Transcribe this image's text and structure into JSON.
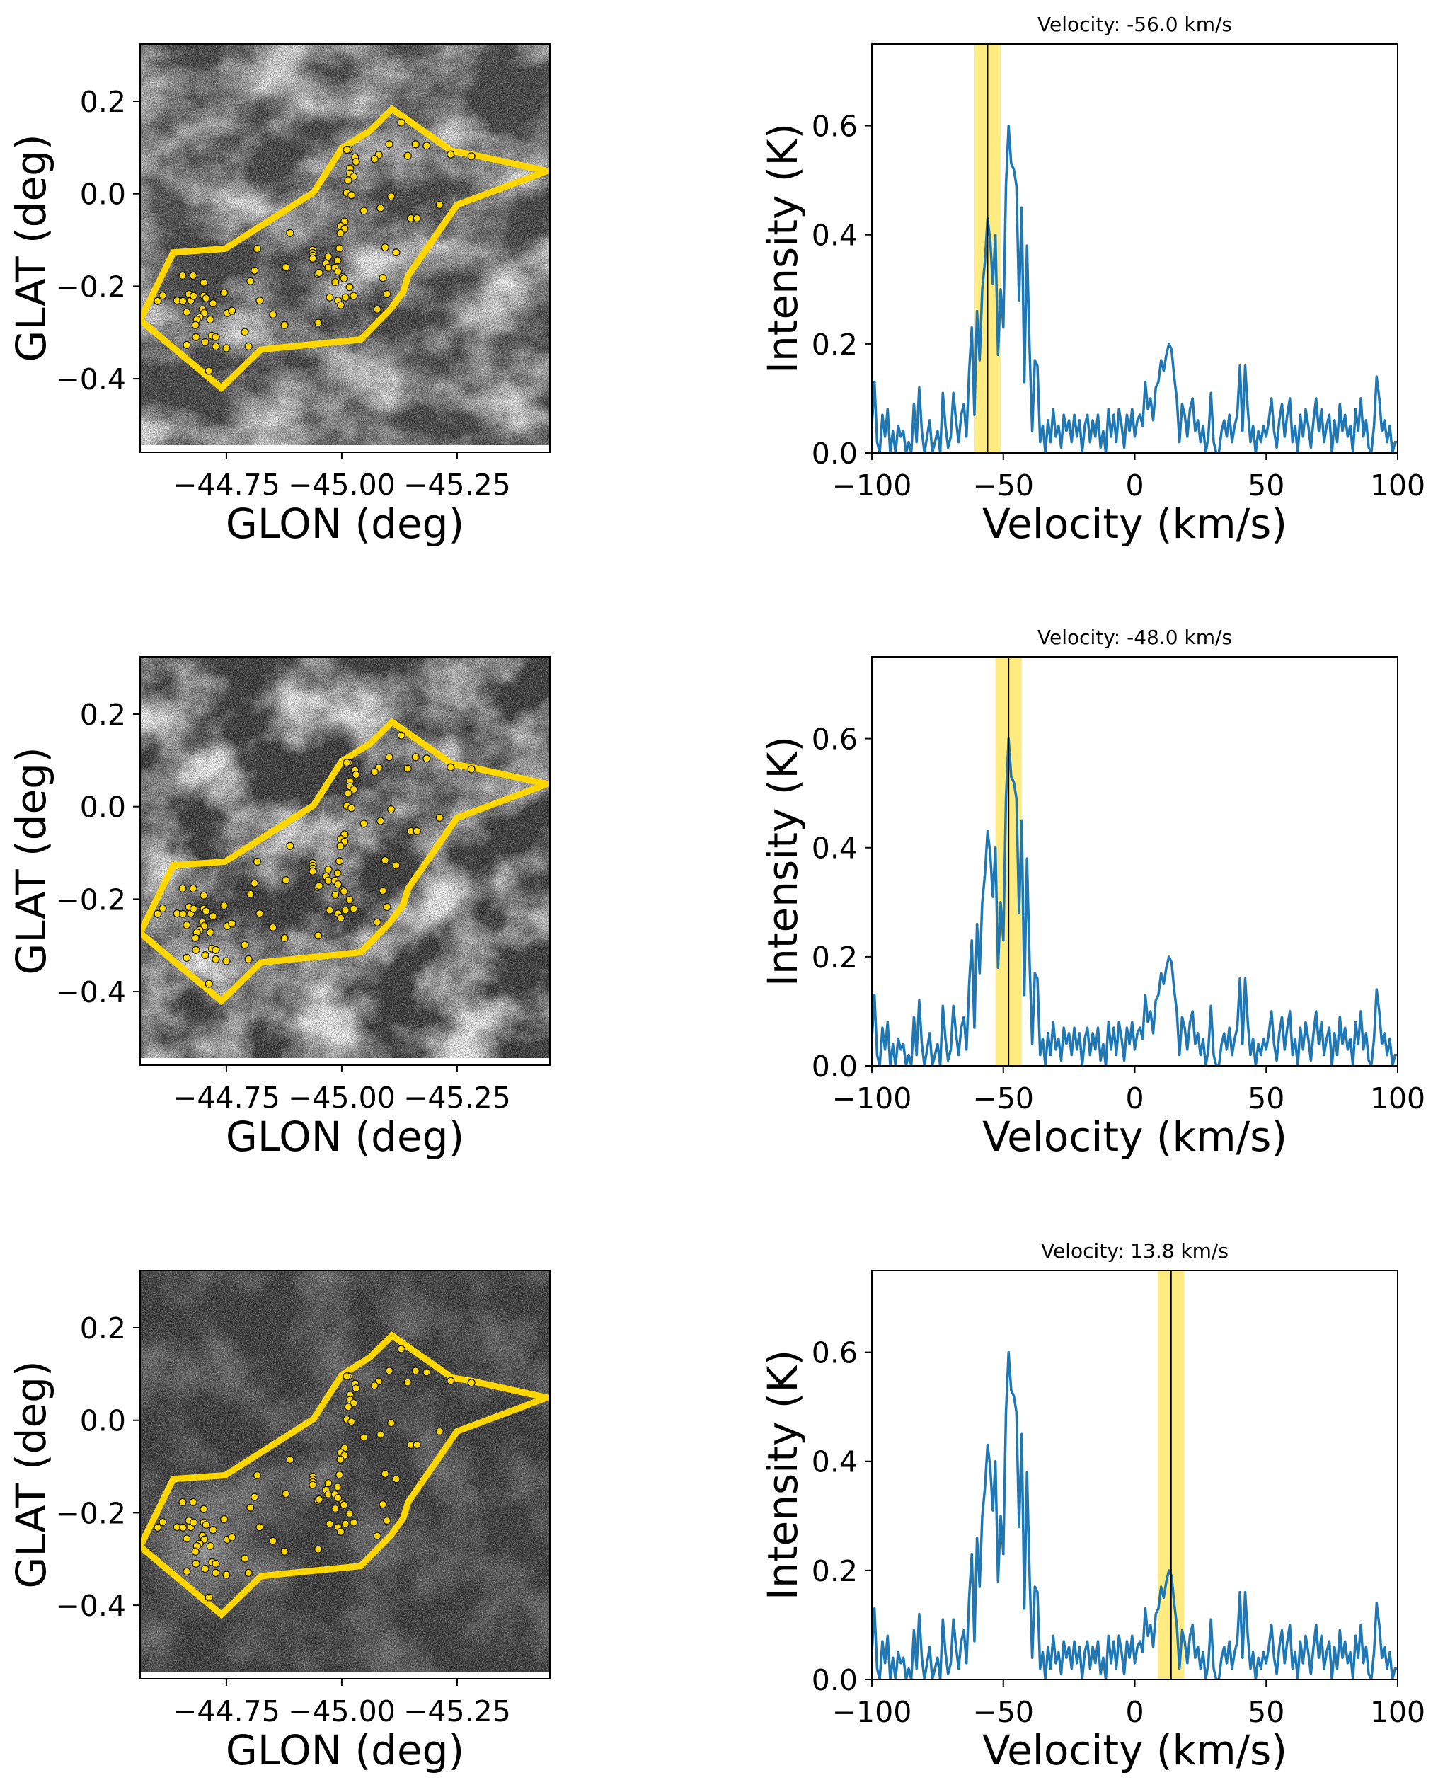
{
  "colors": {
    "region": "#FFD700",
    "point_fill": "#FFD700",
    "point_edge": "#1a1a1a",
    "spectrum_line": "#1f77b4",
    "velocity_band": "#FFD700",
    "velocity_marker": "#000000"
  },
  "panels": [
    {
      "title": "Velocity: -56.0 km/s",
      "velocity": -56.0,
      "band": [
        -61.0,
        -51.0
      ]
    },
    {
      "title": "Velocity: -48.0 km/s",
      "velocity": -48.0,
      "band": [
        -53.0,
        -43.0
      ]
    },
    {
      "title": "Velocity: 13.8 km/s",
      "velocity": 13.8,
      "band": [
        8.8,
        18.8
      ]
    }
  ],
  "chart_data": [
    {
      "id": "channel-map",
      "type": "scatter",
      "title": "",
      "xlabel": "GLON (deg)",
      "ylabel": "GLAT (deg)",
      "xlim": [
        -44.563,
        -45.451
      ],
      "ylim": [
        -0.559,
        0.324
      ],
      "xticks": [
        -44.75,
        -45.0,
        -45.25
      ],
      "xtick_labels": [
        "−44.75",
        "−45.00",
        "−45.25"
      ],
      "yticks": [
        0.2,
        0.0,
        -0.2,
        -0.4
      ],
      "ytick_labels": [
        "0.2",
        "0.0",
        "−0.2",
        "−0.4"
      ],
      "grid": false,
      "polygon": [
        [
          -44.563,
          -0.273
        ],
        [
          -44.635,
          -0.127
        ],
        [
          -44.747,
          -0.119
        ],
        [
          -44.939,
          0.003
        ],
        [
          -45.0,
          0.098
        ],
        [
          -45.061,
          0.136
        ],
        [
          -45.109,
          0.183
        ],
        [
          -45.239,
          0.092
        ],
        [
          -45.281,
          0.085
        ],
        [
          -45.445,
          0.049
        ],
        [
          -45.25,
          -0.024
        ],
        [
          -45.144,
          -0.177
        ],
        [
          -45.133,
          -0.212
        ],
        [
          -45.106,
          -0.249
        ],
        [
          -45.041,
          -0.315
        ],
        [
          -44.825,
          -0.337
        ],
        [
          -44.739,
          -0.42
        ]
      ],
      "points": [
        [
          -44.655,
          -0.177
        ],
        [
          -44.678,
          -0.177
        ],
        [
          -44.701,
          -0.192
        ],
        [
          -44.802,
          -0.189
        ],
        [
          -44.811,
          -0.166
        ],
        [
          -44.612,
          -0.22
        ],
        [
          -44.601,
          -0.232
        ],
        [
          -44.643,
          -0.231
        ],
        [
          -44.656,
          -0.232
        ],
        [
          -44.669,
          -0.217
        ],
        [
          -44.673,
          -0.231
        ],
        [
          -44.679,
          -0.221
        ],
        [
          -44.701,
          -0.221
        ],
        [
          -44.706,
          -0.226
        ],
        [
          -44.721,
          -0.237
        ],
        [
          -44.745,
          -0.214
        ],
        [
          -44.822,
          -0.231
        ],
        [
          -44.664,
          -0.256
        ],
        [
          -44.698,
          -0.25
        ],
        [
          -44.702,
          -0.258
        ],
        [
          -44.692,
          -0.267
        ],
        [
          -44.686,
          -0.272
        ],
        [
          -44.715,
          -0.272
        ],
        [
          -44.683,
          -0.284
        ],
        [
          -44.752,
          -0.258
        ],
        [
          -44.762,
          -0.253
        ],
        [
          -44.851,
          -0.261
        ],
        [
          -44.684,
          -0.31
        ],
        [
          -44.719,
          -0.307
        ],
        [
          -44.727,
          -0.31
        ],
        [
          -44.79,
          -0.299
        ],
        [
          -44.664,
          -0.327
        ],
        [
          -44.704,
          -0.321
        ],
        [
          -44.727,
          -0.33
        ],
        [
          -44.75,
          -0.334
        ],
        [
          -44.798,
          -0.33
        ],
        [
          -44.712,
          -0.383
        ],
        [
          -45.129,
          0.154
        ],
        [
          -45.103,
          0.107
        ],
        [
          -45.16,
          0.107
        ],
        [
          -45.184,
          0.104
        ],
        [
          -45.143,
          0.082
        ],
        [
          -45.08,
          0.084
        ],
        [
          -45.071,
          0.075
        ],
        [
          -45.015,
          0.095
        ],
        [
          -45.011,
          0.095
        ],
        [
          -45.029,
          0.079
        ],
        [
          -45.031,
          0.069
        ],
        [
          -45.018,
          0.055
        ],
        [
          -45.018,
          0.044
        ],
        [
          -45.026,
          0.037
        ],
        [
          -45.014,
          0.029
        ],
        [
          -45.011,
          0.002
        ],
        [
          -45.021,
          -0.003
        ],
        [
          -45.107,
          -0.006
        ],
        [
          -45.212,
          -0.024
        ],
        [
          -45.048,
          -0.037
        ],
        [
          -45.084,
          -0.031
        ],
        [
          -45.15,
          -0.053
        ],
        [
          -45.163,
          -0.053
        ],
        [
          -45.006,
          -0.06
        ],
        [
          -44.998,
          -0.07
        ],
        [
          -45.006,
          -0.076
        ],
        [
          -44.997,
          -0.085
        ],
        [
          -44.888,
          -0.085
        ],
        [
          -44.995,
          -0.118
        ],
        [
          -45.094,
          -0.116
        ],
        [
          -45.118,
          -0.127
        ],
        [
          -44.937,
          -0.122
        ],
        [
          -44.937,
          -0.128
        ],
        [
          -44.937,
          -0.134
        ],
        [
          -44.937,
          -0.14
        ],
        [
          -44.971,
          -0.136
        ],
        [
          -44.991,
          -0.144
        ],
        [
          -44.966,
          -0.151
        ],
        [
          -44.971,
          -0.16
        ],
        [
          -44.985,
          -0.16
        ],
        [
          -44.992,
          -0.168
        ],
        [
          -44.879,
          -0.159
        ],
        [
          -44.948,
          -0.174
        ],
        [
          -44.951,
          -0.171
        ],
        [
          -45.002,
          -0.18
        ],
        [
          -45.005,
          -0.183
        ],
        [
          -45.089,
          -0.182
        ],
        [
          -44.986,
          -0.191
        ],
        [
          -45.017,
          -0.202
        ],
        [
          -44.974,
          -0.224
        ],
        [
          -44.992,
          -0.231
        ],
        [
          -45.008,
          -0.224
        ],
        [
          -45.026,
          -0.221
        ],
        [
          -44.998,
          -0.241
        ],
        [
          -45.098,
          -0.217
        ],
        [
          -45.077,
          -0.25
        ],
        [
          -44.949,
          -0.279
        ],
        [
          -44.876,
          -0.284
        ],
        [
          -45.236,
          0.085
        ],
        [
          -45.281,
          0.081
        ],
        [
          -44.817,
          -0.119
        ]
      ]
    },
    {
      "id": "spectrum",
      "type": "line",
      "title": "",
      "xlabel": "Velocity (km/s)",
      "ylabel": "Intensity (K)",
      "xlim": [
        -100,
        100
      ],
      "ylim": [
        0,
        0.75
      ],
      "xticks": [
        -100,
        -50,
        0,
        50,
        100
      ],
      "xtick_labels": [
        "−100",
        "−50",
        "0",
        "50",
        "100"
      ],
      "yticks": [
        0.0,
        0.2,
        0.4,
        0.6
      ],
      "ytick_labels": [
        "0.0",
        "0.2",
        "0.4",
        "0.6"
      ],
      "grid": false,
      "x_start": -100,
      "x_step": 1,
      "series": [
        {
          "name": "Intensity",
          "values": [
            0.05,
            0.13,
            0.02,
            0.0,
            0.07,
            0.03,
            0.08,
            0.0,
            0.04,
            0.0,
            0.05,
            0.03,
            0.04,
            0.0,
            0.02,
            0.0,
            0.09,
            0.02,
            0.12,
            0.04,
            0.0,
            0.03,
            0.06,
            0.0,
            0.02,
            0.04,
            0.0,
            0.11,
            0.05,
            0.01,
            0.03,
            0.11,
            0.06,
            0.02,
            0.07,
            0.09,
            0.03,
            0.15,
            0.23,
            0.07,
            0.26,
            0.17,
            0.3,
            0.35,
            0.43,
            0.39,
            0.31,
            0.4,
            0.18,
            0.3,
            0.23,
            0.49,
            0.6,
            0.53,
            0.52,
            0.49,
            0.28,
            0.45,
            0.13,
            0.38,
            0.19,
            0.04,
            0.17,
            0.16,
            0.02,
            0.05,
            0.0,
            0.06,
            0.02,
            0.08,
            0.03,
            0.05,
            0.01,
            0.07,
            0.04,
            0.06,
            0.02,
            0.07,
            0.03,
            0.06,
            0.0,
            0.05,
            0.07,
            0.02,
            0.06,
            0.03,
            0.07,
            0.01,
            0.04,
            0.0,
            0.08,
            0.03,
            0.07,
            0.02,
            0.08,
            0.05,
            0.01,
            0.07,
            0.04,
            0.08,
            0.03,
            0.06,
            0.07,
            0.05,
            0.13,
            0.08,
            0.1,
            0.06,
            0.12,
            0.13,
            0.17,
            0.15,
            0.18,
            0.2,
            0.19,
            0.14,
            0.1,
            0.02,
            0.09,
            0.07,
            0.03,
            0.08,
            0.1,
            0.04,
            0.06,
            0.02,
            0.05,
            0.0,
            0.03,
            0.11,
            0.02,
            0.0,
            0.0,
            0.04,
            0.06,
            0.03,
            0.07,
            0.02,
            0.05,
            0.07,
            0.16,
            0.04,
            0.16,
            0.08,
            0.02,
            0.05,
            0.0,
            0.04,
            0.02,
            0.05,
            0.03,
            0.06,
            0.1,
            0.04,
            0.01,
            0.06,
            0.09,
            0.03,
            0.07,
            0.1,
            0.02,
            0.05,
            0.0,
            0.07,
            0.03,
            0.08,
            0.05,
            0.01,
            0.06,
            0.1,
            0.04,
            0.08,
            0.02,
            0.05,
            0.07,
            0.0,
            0.06,
            0.02,
            0.09,
            0.04,
            0.07,
            0.03,
            0.05,
            0.0,
            0.08,
            0.04,
            0.1,
            0.03,
            0.06,
            0.01,
            0.0,
            0.05,
            0.14,
            0.1,
            0.04,
            0.06,
            0.02,
            0.05,
            0.0,
            0.02,
            0.02
          ]
        }
      ]
    }
  ]
}
